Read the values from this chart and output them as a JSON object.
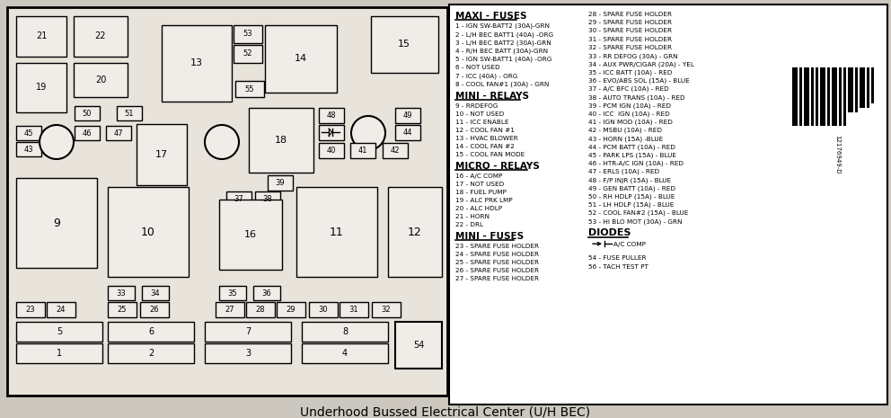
{
  "bg_color": "#e8e8e0",
  "panel_bg": "#f0ede8",
  "border_color": "#000000",
  "title": "Underhood Bussed Electrical Center (U/H BEC)",
  "title_fontsize": 10,
  "maxi_fuses_title": "MAXI - FUSES",
  "maxi_fuses": [
    "1 - IGN SW-BATT2 (30A)-GRN",
    "2 - L/H BEC BATT1 (40A) -ORG",
    "3 - L/H BEC BATT2 (30A)-GRN",
    "4 - R/H BEC BATT (30A)-GRN",
    "5 - IGN SW-BATT1 (40A) -ORG",
    "6 - NOT USED",
    "7 - ICC (40A) - ORG",
    "8 - COOL FAN#1 (30A) - GRN"
  ],
  "mini_relays_title": "MINI - RELAYS",
  "mini_relays": [
    "9 - RRDEFOG",
    "10 - NOT USED",
    "11 - ICC ENABLE",
    "12 - COOL FAN #1",
    "13 - HVAC BLOWER",
    "14 - COOL FAN #2",
    "15 - COOL FAN MODE"
  ],
  "micro_relays_title": "MICRO - RELAYS",
  "micro_relays": [
    "16 - A/C COMP",
    "17 - NOT USED",
    "18 - FUEL PUMP",
    "19 - ALC PRK LMP",
    "20 - ALC HDLP",
    "21 - HORN",
    "22 - DRL"
  ],
  "mini_fuses_title": "MINI - FUSES",
  "mini_fuses": [
    "23 - SPARE FUSE HOLDER",
    "24 - SPARE FUSE HOLDER",
    "25 - SPARE FUSE HOLDER",
    "26 - SPARE FUSE HOLDER",
    "27 - SPARE FUSE HOLDER"
  ],
  "right_col": [
    "28 - SPARE FUSE HOLDER",
    "29 - SPARE FUSE HOLDER",
    "30 - SPARE FUSE HOLDER",
    "31 - SPARE FUSE HOLDER",
    "32 - SPARE FUSE HOLDER",
    "33 - RR DEFOG (30A) - GRN",
    "34 - AUX PWR/CIGAR (20A) - YEL",
    "35 - ICC BATT (10A) - RED",
    "36 - EVO/ABS SOL (15A) - BLUE",
    "37 - A/C BFC (10A) - RED",
    "38 - AUTO TRANS (10A) - RED",
    "39 - PCM IGN (10A) - RED",
    "40 - ICC  IGN (10A) - RED",
    "41 - IGN MOD (10A) - RED",
    "42 - MSBU (10A) - RED",
    "43 - HORN (15A) -BLUE",
    "44 - PCM BATT (10A) - RED",
    "45 - PARK LPS (15A) - BLUE",
    "46 - HTR-A/C IGN (10A) - RED",
    "47 - ERLS (10A) - RED",
    "48 - F/P INJR (15A) - BLUE",
    "49 - GEN BATT (10A) - RED",
    "50 - RH HDLP (15A) - BLUE",
    "51 - LH HDLP (15A) - BLUE",
    "52 - COOL FAN#2 (15A) - BLUE",
    "53 - HI BLO MOT (30A) - GRN"
  ],
  "diodes_title": "DIODES",
  "diode_ac": "A/C COMP",
  "diodes": [
    "54 - FUSE PULLER",
    "56 - TACH TEST PT"
  ],
  "barcode_text": "12176949-D"
}
